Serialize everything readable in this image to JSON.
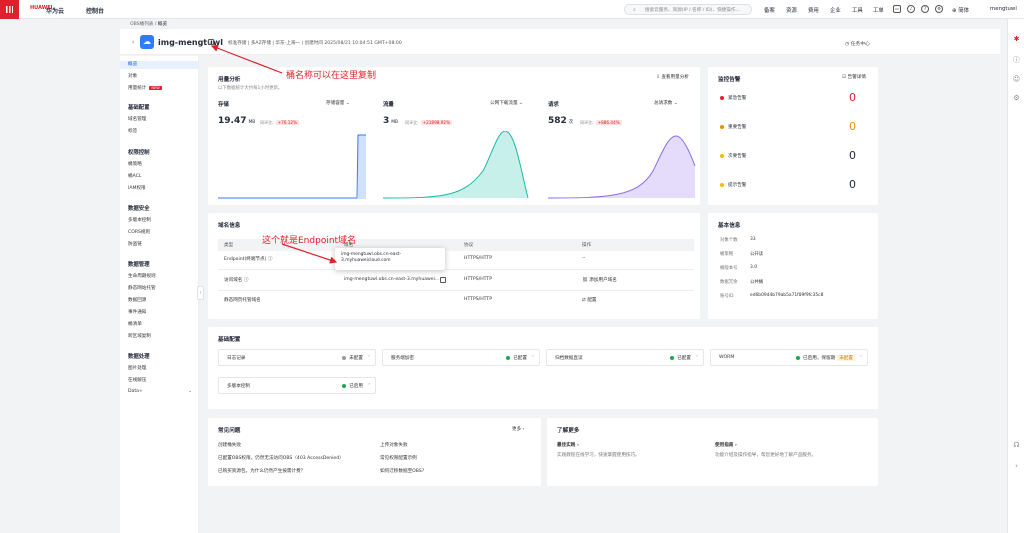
{
  "topbar": {
    "logo": "HUAWEI",
    "brand": "华为云",
    "console": "控制台",
    "search_placeholder": "搜索云服务、资源(IP / 名称 / ID)、快捷操作...",
    "menus": [
      "备案",
      "资源",
      "费用",
      "企业",
      "工具",
      "工单"
    ],
    "lang": "简体",
    "user": "mengtuwl"
  },
  "breadcrumb": {
    "parent": "OBS桶列表",
    "sep": " / ",
    "current": "概览"
  },
  "bucket": {
    "name": "img-mengtuwl",
    "meta": "标准存储 | 多AZ存储 | 华东-上海一 | 创建时间 2025/08/21 10:04:51 GMT+08:00",
    "task_center": "任务中心"
  },
  "sidebar": {
    "top_items": [
      {
        "label": "概览",
        "active": true
      },
      {
        "label": "对象",
        "active": false
      },
      {
        "label": "用量统计",
        "active": false,
        "badge": "NEW"
      }
    ],
    "groups": [
      {
        "title": "基础配置",
        "items": [
          "域名管理",
          "标签"
        ]
      },
      {
        "title": "权限控制",
        "items": [
          "桶策略",
          "桶ACL",
          "IAM权限"
        ]
      },
      {
        "title": "数据安全",
        "items": [
          "多版本控制",
          "CORS规则",
          "防盗链"
        ]
      },
      {
        "title": "数据管理",
        "items": [
          "生命周期规则",
          "静态网站托管",
          "数据回源",
          "事件通知",
          "桶清单",
          "跨区域复制"
        ]
      },
      {
        "title": "数据处理",
        "items": [
          "图片处理",
          "在线解压",
          "Data+"
        ]
      }
    ]
  },
  "usage": {
    "title": "用量分析",
    "subtitle": "以下数据统计大约每1小时更新。",
    "link": "查看用量分析",
    "metrics": [
      {
        "label": "存储",
        "select": "存储容量",
        "value": "19.47",
        "unit": "MB",
        "cmp_label": "同环比",
        "cmp": "+76.12%"
      },
      {
        "label": "流量",
        "select": "公网下载流量",
        "value": "3",
        "unit": "MB",
        "cmp_label": "同环比",
        "cmp": "+21898.92%"
      },
      {
        "label": "请求",
        "select": "总请求数",
        "value": "582",
        "unit": "次",
        "cmp_label": "同环比",
        "cmp": "+886.44%"
      }
    ]
  },
  "monitor": {
    "title": "监控告警",
    "link": "告警详情",
    "rows": [
      {
        "label": "紧急告警",
        "count": "0",
        "color": "#e0202a"
      },
      {
        "label": "重要告警",
        "count": "0",
        "color": "#f08c00"
      },
      {
        "label": "次要告警",
        "count": "0",
        "color": "#f0c000"
      },
      {
        "label": "提示告警",
        "count": "0",
        "color": "#f0c000"
      }
    ]
  },
  "domain": {
    "title": "域名信息",
    "headers": [
      "类型",
      "域名",
      "协议",
      "操作"
    ],
    "rows": [
      {
        "type": "Endpoint(终端节点)",
        "domain": "",
        "protocol": "HTTPS/HTTP",
        "action": "--"
      },
      {
        "type": "访问域名",
        "domain": "img-mengtuwl.obs.cn-east-3.myhuawei...",
        "protocol": "HTTPS/HTTP",
        "action": "添加用户域名"
      },
      {
        "type": "静态网页托管域名",
        "domain": "",
        "protocol": "HTTPS/HTTP",
        "action": "配置"
      }
    ],
    "popup": "img-mengtuwl.obs.cn-east-3.myhuaweicloud.com"
  },
  "basic": {
    "title": "基本信息",
    "rows": [
      {
        "k": "对象个数",
        "v": "33"
      },
      {
        "k": "桶策略",
        "v": "公开读"
      },
      {
        "k": "桶版本号",
        "v": "3.0"
      },
      {
        "k": "数据冗余",
        "v": "公共桶"
      },
      {
        "k": "账号ID",
        "v": "ed6b09d4b79ab5a71f89f9fc35c8"
      }
    ]
  },
  "config": {
    "title": "基础配置",
    "items": [
      {
        "name": "日志记录",
        "status": "未配置",
        "color": "#999999"
      },
      {
        "name": "服务端加密",
        "status": "已配置",
        "color": "#19a94e"
      },
      {
        "name": "归档数据直读",
        "status": "已配置",
        "color": "#19a94e"
      },
      {
        "name": "WORM",
        "status": "已启用，保留期",
        "color": "#19a94e",
        "tag": "未配置"
      },
      {
        "name": "多版本控制",
        "status": "已启用",
        "color": "#19a94e"
      }
    ]
  },
  "faq": {
    "title": "常见问题",
    "more": "更多",
    "items": [
      "创建桶失败",
      "上传对象失败",
      "已配置OBS权限，仍然无法访问OBS（403 AccessDenied）",
      "常见权限配置示例",
      "已购买资源包，为什么仍然产生按需计费？",
      "如何迁移数据至OBS?"
    ]
  },
  "learn": {
    "title": "了解更多",
    "cols": [
      {
        "t": "最佳实践",
        "d": "实践教程在线学习，快速掌握使用技巧。"
      },
      {
        "t": "使用指南",
        "d": "功能介绍及操作指导，帮您更好地了解产品服务。"
      }
    ]
  },
  "annotations": {
    "copy_hint": "桶名称可以在这里复制",
    "endpoint_hint": "这个就是Endpoint域名"
  }
}
